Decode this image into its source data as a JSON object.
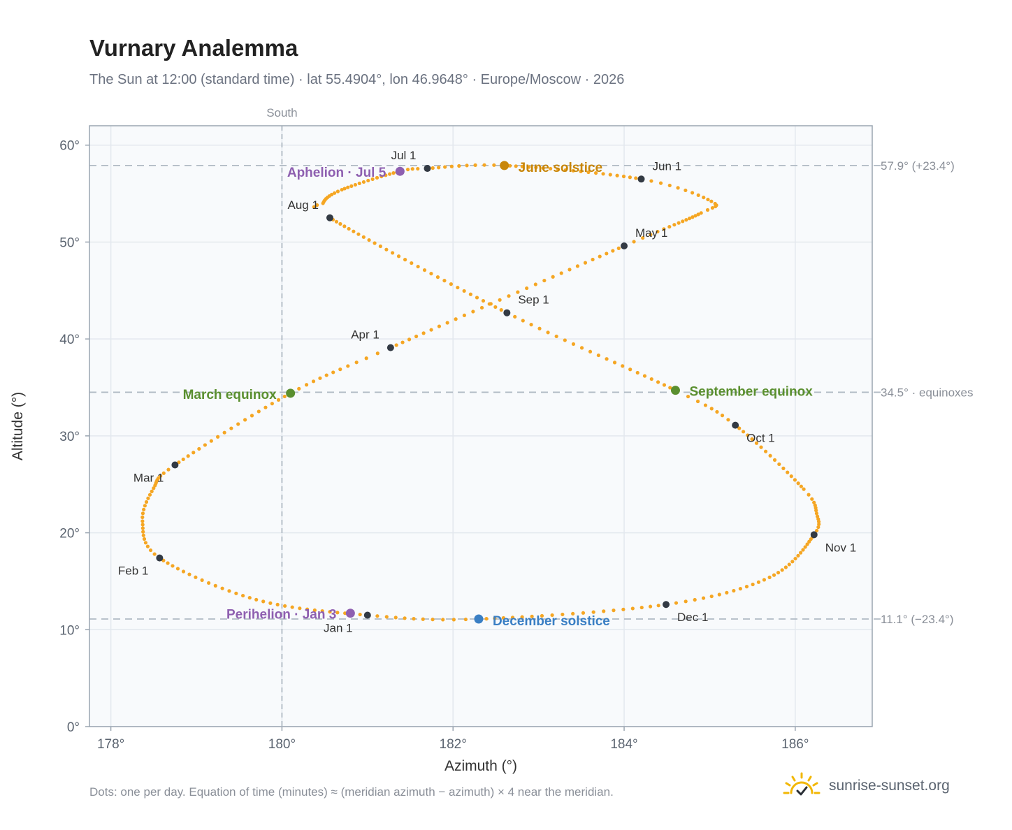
{
  "title": "Vurnary Analemma",
  "subtitle": "The Sun at 12:00 (standard time) · lat 55.4904°, lon 46.9648° · Europe/Moscow · 2026",
  "footnote": "Dots: one per day. Equation of time (minutes) ≈ (meridian azimuth − azimuth) × 4 near the meridian.",
  "brand": {
    "name": "sunrise-sunset.org",
    "icon": "sun-check-icon"
  },
  "colors": {
    "path": "#f5a623",
    "month": "#333a44",
    "june_solstice": "#c8860a",
    "december_solstice": "#3a7fc4",
    "equinox": "#5a8f2f",
    "apsis": "#8e5fb0",
    "plot_bg": "#f8fafc",
    "grid": "#e3e8ee",
    "reference": "#b0bac4"
  },
  "chart_data": {
    "type": "scatter",
    "xlabel": "Azimuth (°)",
    "ylabel": "Altitude (°)",
    "xlim": [
      177.75,
      186.9
    ],
    "ylim": [
      0,
      62
    ],
    "xticks": [
      178,
      180,
      182,
      184,
      186
    ],
    "yticks": [
      0,
      10,
      20,
      30,
      40,
      50,
      60
    ],
    "x_tick_labels": [
      "178°",
      "180°",
      "182°",
      "184°",
      "186°"
    ],
    "y_tick_labels": [
      "0°",
      "10°",
      "20°",
      "30°",
      "40°",
      "50°",
      "60°"
    ],
    "grid": true,
    "meridian": {
      "x": 180,
      "label": "South"
    },
    "reference_lines": [
      {
        "y": 57.9,
        "label": "57.9° (+23.4°)"
      },
      {
        "y": 34.5,
        "label": "34.5° · equinoxes"
      },
      {
        "y": 11.1,
        "label": "11.1° (−23.4°)"
      }
    ],
    "analemma": {
      "series_description": "one dot per day",
      "keyframes": [
        {
          "day": 0,
          "x": 181.0,
          "y": 11.5
        },
        {
          "day": 15,
          "x": 179.7,
          "y": 13.1
        },
        {
          "day": 31,
          "x": 178.57,
          "y": 17.4
        },
        {
          "day": 41,
          "x": 178.37,
          "y": 21.2
        },
        {
          "day": 50,
          "x": 178.5,
          "y": 24.6
        },
        {
          "day": 59,
          "x": 178.75,
          "y": 27.0
        },
        {
          "day": 78,
          "x": 180.1,
          "y": 34.4
        },
        {
          "day": 90,
          "x": 181.27,
          "y": 39.1
        },
        {
          "day": 120,
          "x": 184.0,
          "y": 49.6
        },
        {
          "day": 135,
          "x": 184.9,
          "y": 53.0
        },
        {
          "day": 141,
          "x": 185.02,
          "y": 54.2
        },
        {
          "day": 151,
          "x": 184.2,
          "y": 56.5
        },
        {
          "day": 171,
          "x": 182.6,
          "y": 57.9
        },
        {
          "day": 181,
          "x": 181.7,
          "y": 57.6
        },
        {
          "day": 185,
          "x": 181.38,
          "y": 57.3
        },
        {
          "day": 200,
          "x": 180.7,
          "y": 55.4
        },
        {
          "day": 209,
          "x": 180.48,
          "y": 54.0
        },
        {
          "day": 212,
          "x": 180.56,
          "y": 52.5
        },
        {
          "day": 243,
          "x": 182.63,
          "y": 42.7
        },
        {
          "day": 265,
          "x": 184.6,
          "y": 34.7
        },
        {
          "day": 273,
          "x": 185.3,
          "y": 31.1
        },
        {
          "day": 290,
          "x": 186.1,
          "y": 24.5
        },
        {
          "day": 297,
          "x": 186.25,
          "y": 22.0
        },
        {
          "day": 304,
          "x": 186.22,
          "y": 19.8
        },
        {
          "day": 320,
          "x": 185.7,
          "y": 15.4
        },
        {
          "day": 334,
          "x": 184.49,
          "y": 12.6
        },
        {
          "day": 354,
          "x": 182.3,
          "y": 11.1
        },
        {
          "day": 365,
          "x": 181.0,
          "y": 11.5
        }
      ]
    },
    "month_markers": [
      {
        "label": "Jan 1",
        "x": 181.0,
        "y": 11.5,
        "anchor": "middle",
        "dx": -42,
        "dy": 24
      },
      {
        "label": "Feb 1",
        "x": 178.57,
        "y": 17.4,
        "anchor": "end",
        "dx": -16,
        "dy": 24
      },
      {
        "label": "Mar 1",
        "x": 178.75,
        "y": 27.0,
        "anchor": "end",
        "dx": -16,
        "dy": 24
      },
      {
        "label": "Apr 1",
        "x": 181.27,
        "y": 39.1,
        "anchor": "end",
        "dx": -16,
        "dy": -13
      },
      {
        "label": "May 1",
        "x": 184.0,
        "y": 49.6,
        "anchor": "start",
        "dx": 16,
        "dy": -13
      },
      {
        "label": "Jun 1",
        "x": 184.2,
        "y": 56.5,
        "anchor": "start",
        "dx": 16,
        "dy": -13
      },
      {
        "label": "Jul 1",
        "x": 181.7,
        "y": 57.6,
        "anchor": "end",
        "dx": -16,
        "dy": -13
      },
      {
        "label": "Aug 1",
        "x": 180.56,
        "y": 52.5,
        "anchor": "end",
        "dx": -16,
        "dy": -13
      },
      {
        "label": "Sep 1",
        "x": 182.63,
        "y": 42.7,
        "anchor": "start",
        "dx": 16,
        "dy": -13
      },
      {
        "label": "Oct 1",
        "x": 185.3,
        "y": 31.1,
        "anchor": "start",
        "dx": 16,
        "dy": 24
      },
      {
        "label": "Nov 1",
        "x": 186.22,
        "y": 19.8,
        "anchor": "start",
        "dx": 16,
        "dy": 24
      },
      {
        "label": "Dec 1",
        "x": 184.49,
        "y": 12.6,
        "anchor": "start",
        "dx": 16,
        "dy": 24
      }
    ],
    "events": [
      {
        "label": "June solstice",
        "x": 182.6,
        "y": 57.9,
        "color_key": "june_solstice",
        "anchor": "start",
        "dx": 20,
        "dy": 9
      },
      {
        "label": "Aphelion · Jul 5",
        "x": 181.38,
        "y": 57.3,
        "color_key": "apsis",
        "anchor": "end",
        "dx": -20,
        "dy": 8
      },
      {
        "label": "March equinox",
        "x": 180.1,
        "y": 34.4,
        "color_key": "equinox",
        "anchor": "end",
        "dx": -20,
        "dy": 8
      },
      {
        "label": "September equinox",
        "x": 184.6,
        "y": 34.7,
        "color_key": "equinox",
        "anchor": "start",
        "dx": 20,
        "dy": 8
      },
      {
        "label": "Perihelion · Jan 3",
        "x": 180.8,
        "y": 11.7,
        "color_key": "apsis",
        "anchor": "end",
        "dx": -20,
        "dy": 8
      },
      {
        "label": "December solstice",
        "x": 182.3,
        "y": 11.1,
        "color_key": "december_solstice",
        "anchor": "start",
        "dx": 20,
        "dy": 9
      }
    ]
  }
}
